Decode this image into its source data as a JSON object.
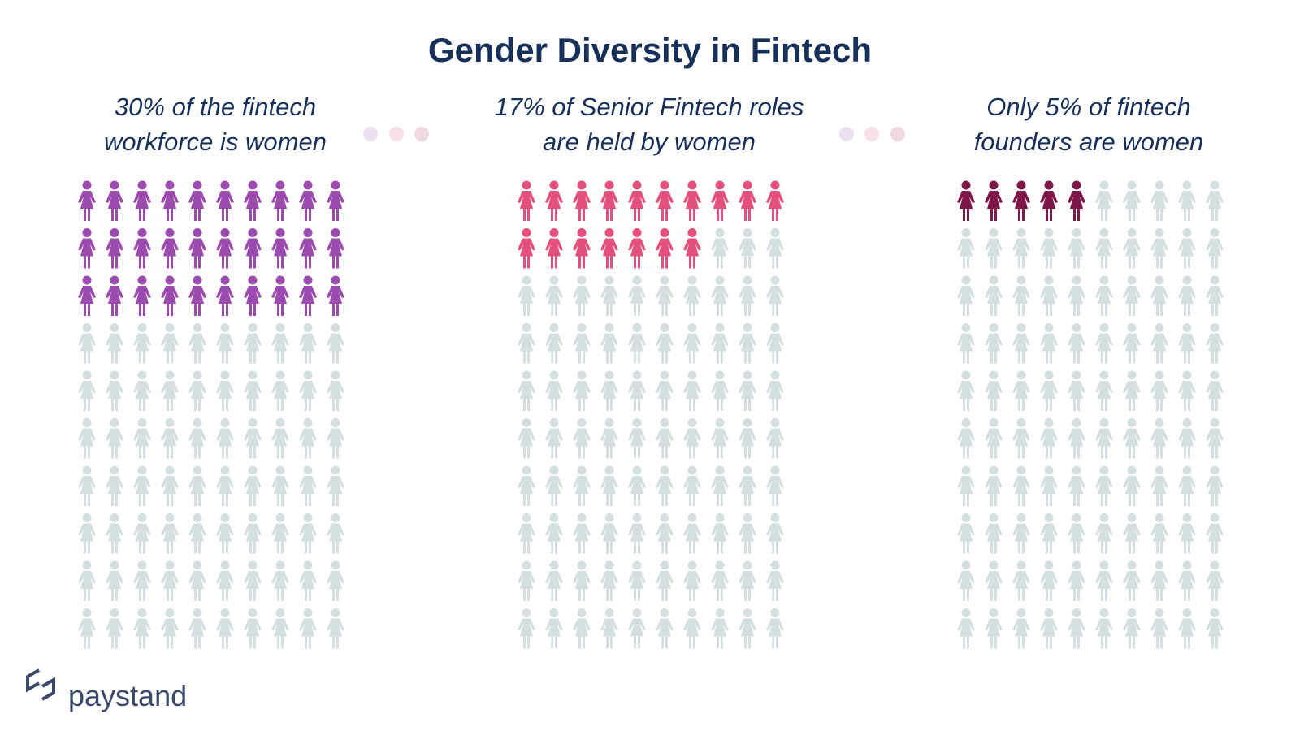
{
  "title": "Gender Diversity in Fintech",
  "brand": "paystand",
  "chart_data": [
    {
      "type": "pictogram",
      "title": "30% of the fintech workforce is women",
      "value": 30,
      "color": "#9b4aae",
      "empty_color": "#d3dfe1"
    },
    {
      "type": "pictogram",
      "title": "17% of Senior Fintech roles are held by women",
      "value": 17,
      "color": "#e2507b",
      "empty_color": "#d3dfe1"
    },
    {
      "type": "pictogram",
      "title": "Only 5% of fintech founders are women",
      "value": 5,
      "color": "#7c1747",
      "empty_color": "#d3dfe1"
    }
  ]
}
